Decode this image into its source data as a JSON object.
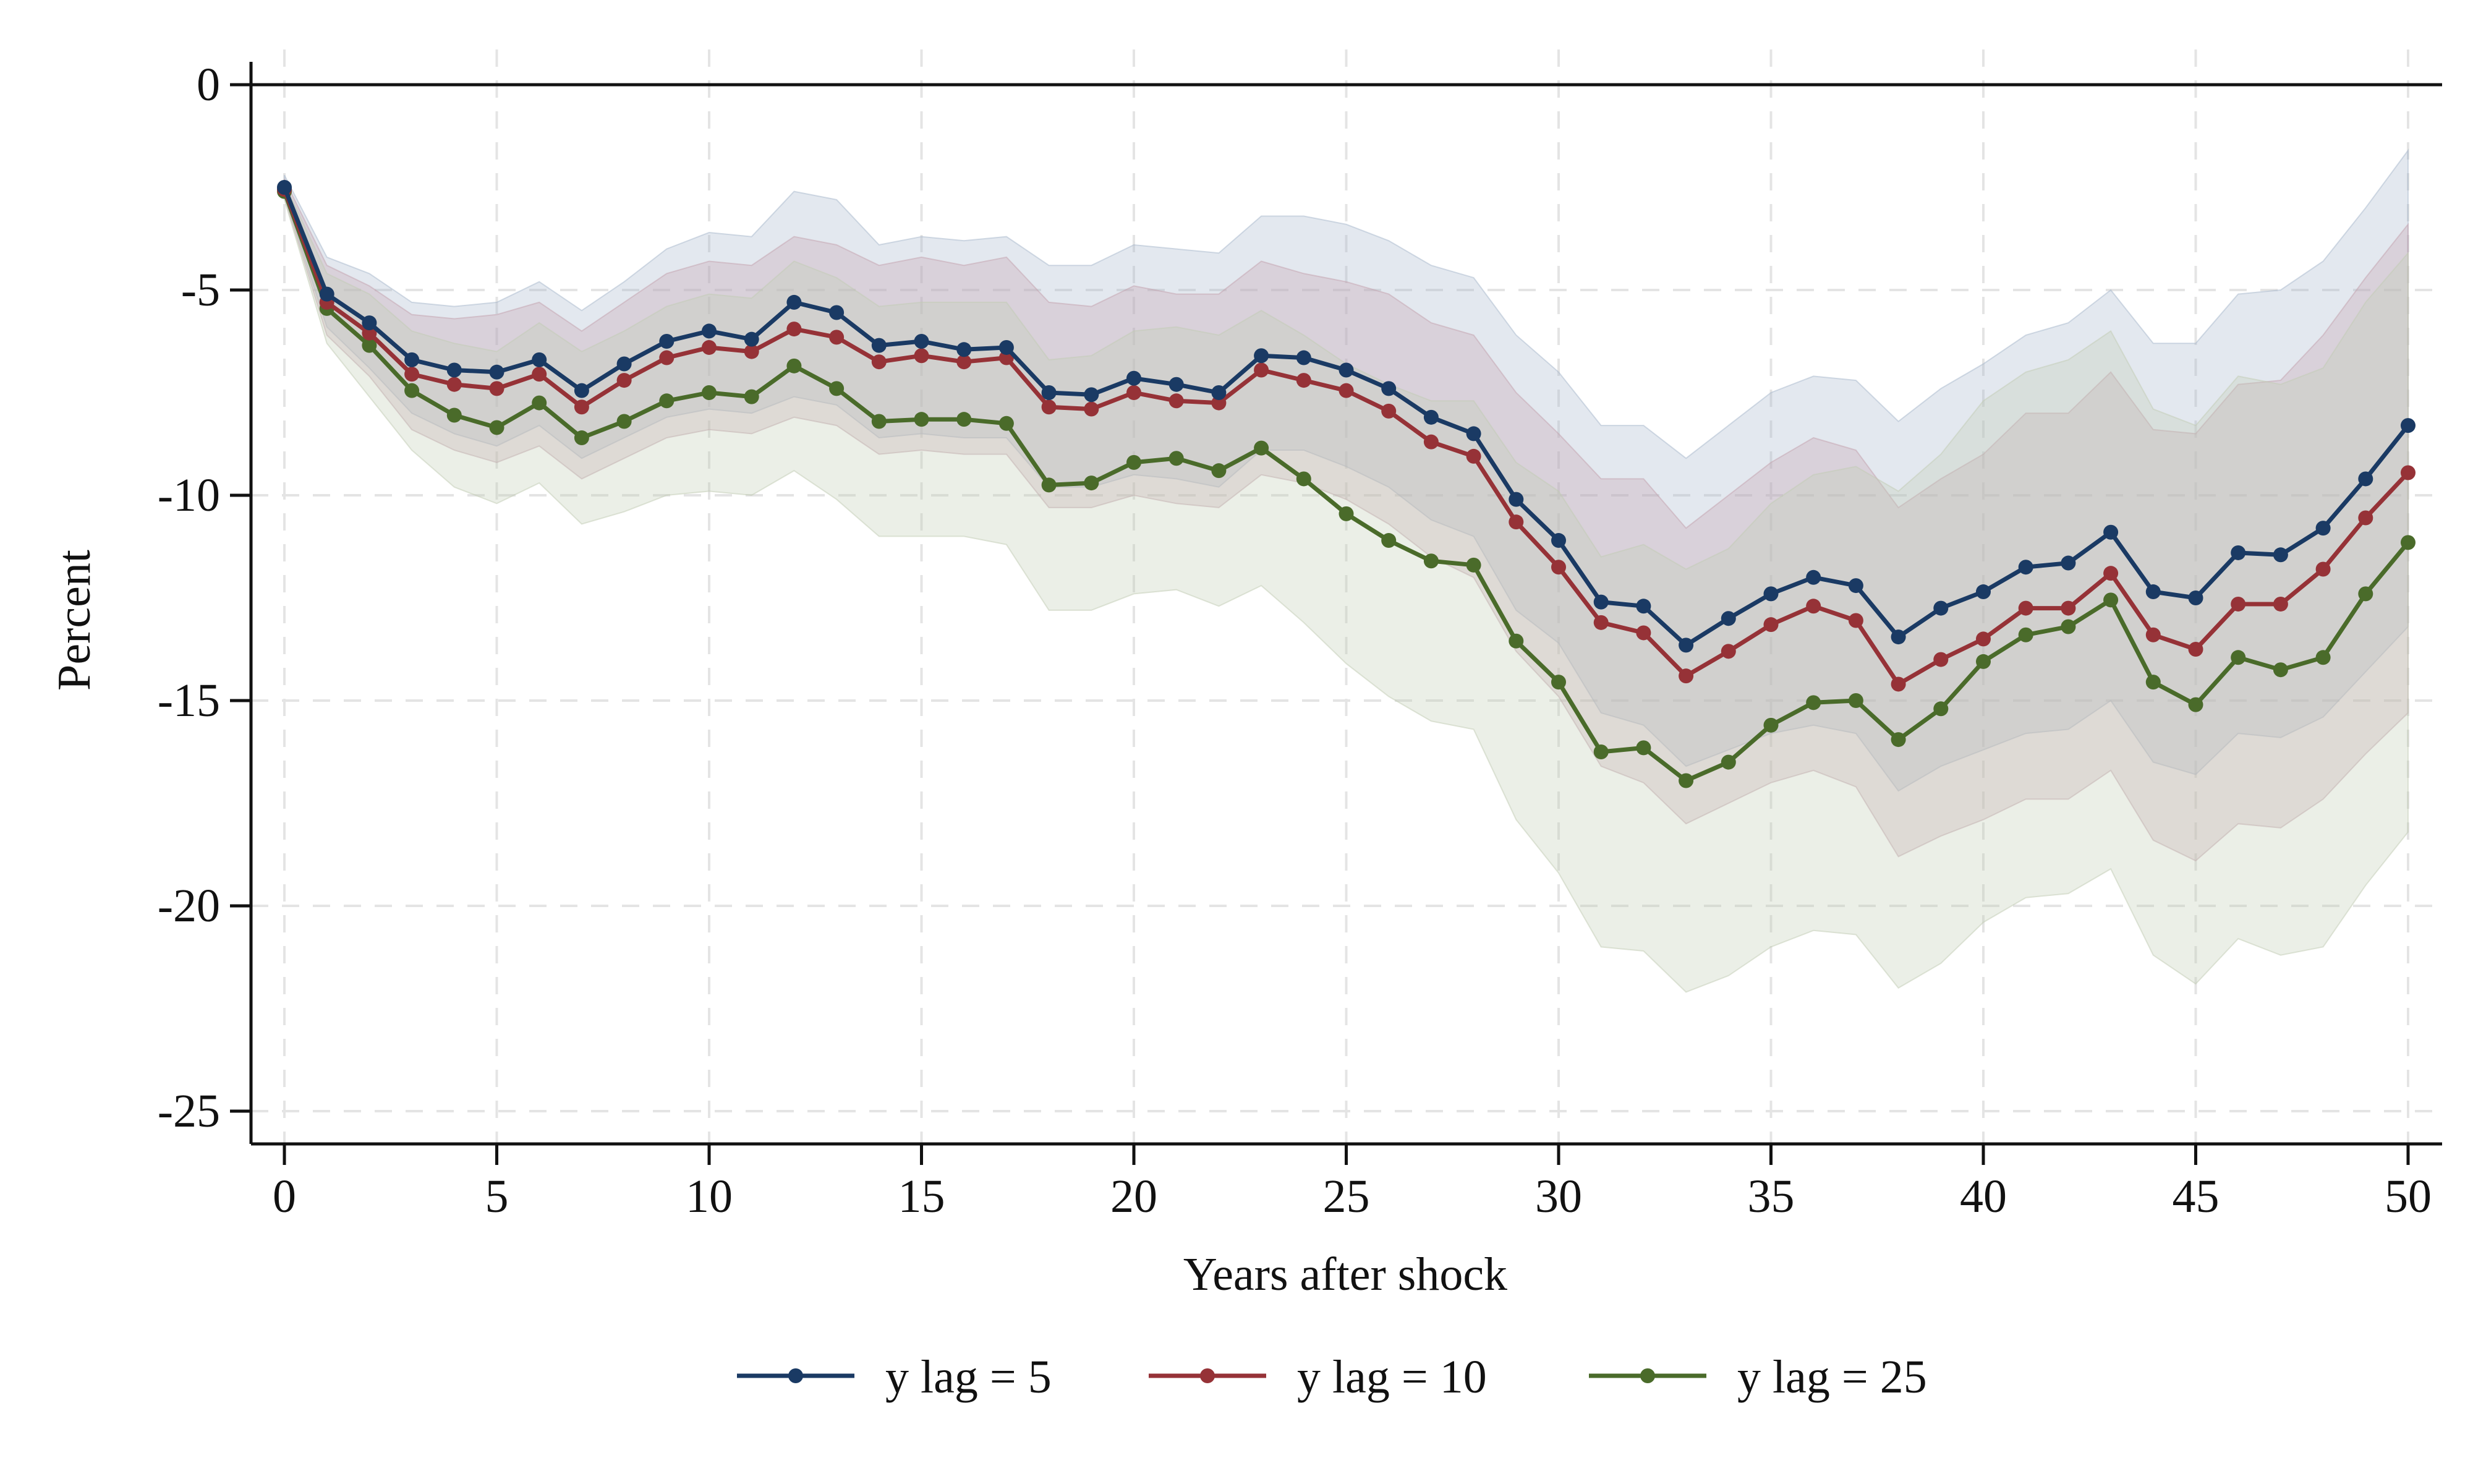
{
  "chart_data": {
    "type": "line",
    "title": "",
    "xlabel": "Years after shock",
    "ylabel": "Percent",
    "xlim": [
      0,
      50
    ],
    "ylim": [
      -25,
      0
    ],
    "x_ticks": [
      0,
      5,
      10,
      15,
      20,
      25,
      30,
      35,
      40,
      45,
      50
    ],
    "y_ticks": [
      0,
      -5,
      -10,
      -15,
      -20,
      -25
    ],
    "x_tick_labels": [
      "0",
      "5",
      "10",
      "15",
      "20",
      "25",
      "30",
      "35",
      "40",
      "45",
      "50"
    ],
    "y_tick_labels": [
      "0",
      "-5",
      "-10",
      "-15",
      "-20",
      "-25"
    ],
    "grid": true,
    "reference_line": 0,
    "legend_position": "bottom",
    "x": [
      0,
      1,
      2,
      3,
      4,
      5,
      6,
      7,
      8,
      9,
      10,
      11,
      12,
      13,
      14,
      15,
      16,
      17,
      18,
      19,
      20,
      21,
      22,
      23,
      24,
      25,
      26,
      27,
      28,
      29,
      30,
      31,
      32,
      33,
      34,
      35,
      36,
      37,
      38,
      39,
      40,
      41,
      42,
      43,
      44,
      45,
      46,
      47,
      48,
      49,
      50
    ],
    "series": [
      {
        "name": "y lag = 5",
        "color": "#1a3a64",
        "band_color": "#a8b8cc",
        "values": [
          -2.5,
          -5.1,
          -5.8,
          -6.7,
          -6.95,
          -7.0,
          -6.7,
          -7.45,
          -6.8,
          -6.25,
          -6.0,
          -6.2,
          -5.3,
          -5.55,
          -6.35,
          -6.25,
          -6.45,
          -6.4,
          -7.5,
          -7.55,
          -7.15,
          -7.3,
          -7.5,
          -6.6,
          -6.65,
          -6.95,
          -7.4,
          -8.1,
          -8.5,
          -10.1,
          -11.1,
          -12.6,
          -12.7,
          -13.65,
          -13.0,
          -12.4,
          -12.0,
          -12.2,
          -13.45,
          -12.75,
          -12.35,
          -11.75,
          -11.65,
          -10.9,
          -12.35,
          -12.5,
          -11.4,
          -11.45,
          -10.8,
          -9.6,
          -8.3
        ],
        "lower": [
          -2.7,
          -5.9,
          -6.9,
          -8.0,
          -8.5,
          -8.8,
          -8.3,
          -9.1,
          -8.6,
          -8.1,
          -7.9,
          -8.0,
          -7.6,
          -7.8,
          -8.6,
          -8.5,
          -8.6,
          -8.6,
          -9.8,
          -9.8,
          -9.5,
          -9.6,
          -9.8,
          -8.9,
          -8.9,
          -9.3,
          -9.8,
          -10.6,
          -11.0,
          -12.8,
          -13.6,
          -15.3,
          -15.6,
          -16.6,
          -16.2,
          -15.8,
          -15.6,
          -15.8,
          -17.2,
          -16.6,
          -16.2,
          -15.8,
          -15.7,
          -15.0,
          -16.5,
          -16.8,
          -15.8,
          -15.9,
          -15.4,
          -14.3,
          -13.2
        ],
        "upper": [
          -2.2,
          -4.2,
          -4.6,
          -5.3,
          -5.4,
          -5.3,
          -4.8,
          -5.5,
          -4.8,
          -4.0,
          -3.6,
          -3.7,
          -2.6,
          -2.8,
          -3.9,
          -3.7,
          -3.8,
          -3.7,
          -4.4,
          -4.4,
          -3.9,
          -4.0,
          -4.1,
          -3.2,
          -3.2,
          -3.4,
          -3.8,
          -4.4,
          -4.7,
          -6.1,
          -7.0,
          -8.3,
          -8.3,
          -9.1,
          -8.3,
          -7.5,
          -7.1,
          -7.2,
          -8.2,
          -7.4,
          -6.8,
          -6.1,
          -5.8,
          -5.0,
          -6.3,
          -6.3,
          -5.1,
          -5.0,
          -4.3,
          -3.0,
          -1.6
        ]
      },
      {
        "name": "y lag = 10",
        "color": "#963237",
        "band_color": "#c3a1ad",
        "values": [
          -2.55,
          -5.3,
          -6.05,
          -7.05,
          -7.3,
          -7.4,
          -7.05,
          -7.85,
          -7.2,
          -6.65,
          -6.4,
          -6.5,
          -5.95,
          -6.15,
          -6.75,
          -6.6,
          -6.75,
          -6.65,
          -7.85,
          -7.9,
          -7.5,
          -7.7,
          -7.75,
          -6.95,
          -7.2,
          -7.45,
          -7.95,
          -8.7,
          -9.05,
          -10.65,
          -11.75,
          -13.1,
          -13.35,
          -14.4,
          -13.8,
          -13.15,
          -12.7,
          -13.05,
          -14.6,
          -14.0,
          -13.5,
          -12.75,
          -12.75,
          -11.9,
          -13.4,
          -13.75,
          -12.65,
          -12.65,
          -11.8,
          -10.55,
          -9.45
        ],
        "lower": [
          -2.75,
          -6.1,
          -7.1,
          -8.4,
          -8.9,
          -9.2,
          -8.8,
          -9.6,
          -9.1,
          -8.6,
          -8.4,
          -8.5,
          -8.1,
          -8.3,
          -9.0,
          -8.9,
          -9.0,
          -9.0,
          -10.3,
          -10.3,
          -10.0,
          -10.2,
          -10.3,
          -9.5,
          -9.7,
          -10.1,
          -10.7,
          -11.5,
          -12.0,
          -13.8,
          -14.9,
          -16.6,
          -17.0,
          -18.0,
          -17.5,
          -17.0,
          -16.7,
          -17.1,
          -18.8,
          -18.3,
          -17.9,
          -17.4,
          -17.4,
          -16.7,
          -18.4,
          -18.9,
          -18.0,
          -18.1,
          -17.4,
          -16.3,
          -15.3
        ],
        "upper": [
          -2.3,
          -4.4,
          -4.9,
          -5.6,
          -5.7,
          -5.6,
          -5.3,
          -6.0,
          -5.3,
          -4.6,
          -4.3,
          -4.4,
          -3.7,
          -3.9,
          -4.4,
          -4.2,
          -4.4,
          -4.2,
          -5.3,
          -5.4,
          -4.9,
          -5.1,
          -5.1,
          -4.3,
          -4.6,
          -4.8,
          -5.1,
          -5.8,
          -6.1,
          -7.5,
          -8.5,
          -9.6,
          -9.6,
          -10.8,
          -10.0,
          -9.2,
          -8.6,
          -8.9,
          -10.3,
          -9.6,
          -9.0,
          -8.0,
          -8.0,
          -7.0,
          -8.4,
          -8.5,
          -7.3,
          -7.2,
          -6.1,
          -4.7,
          -3.4
        ]
      },
      {
        "name": "y lag = 25",
        "color": "#4a6b2a",
        "band_color": "#c2ccb4",
        "values": [
          -2.6,
          -5.45,
          -6.35,
          -7.45,
          -8.05,
          -8.35,
          -7.75,
          -8.6,
          -8.2,
          -7.7,
          -7.5,
          -7.6,
          -6.85,
          -7.4,
          -8.2,
          -8.15,
          -8.15,
          -8.25,
          -9.75,
          -9.7,
          -9.2,
          -9.1,
          -9.4,
          -8.85,
          -9.6,
          -10.45,
          -11.1,
          -11.6,
          -11.7,
          -13.55,
          -14.55,
          -16.25,
          -16.15,
          -16.95,
          -16.5,
          -15.6,
          -15.05,
          -15.0,
          -15.95,
          -15.2,
          -14.05,
          -13.4,
          -13.2,
          -12.55,
          -14.55,
          -15.1,
          -13.95,
          -14.25,
          -13.95,
          -12.4,
          -11.15
        ],
        "lower": [
          -2.8,
          -6.3,
          -7.6,
          -8.9,
          -9.8,
          -10.2,
          -9.7,
          -10.7,
          -10.4,
          -10.0,
          -9.9,
          -10.0,
          -9.4,
          -10.1,
          -11.0,
          -11.0,
          -11.0,
          -11.2,
          -12.8,
          -12.8,
          -12.4,
          -12.3,
          -12.7,
          -12.2,
          -13.1,
          -14.1,
          -14.9,
          -15.5,
          -15.7,
          -17.9,
          -19.2,
          -21.0,
          -21.1,
          -22.1,
          -21.7,
          -21.0,
          -20.6,
          -20.7,
          -22.0,
          -21.4,
          -20.4,
          -19.8,
          -19.7,
          -19.1,
          -21.2,
          -21.9,
          -20.8,
          -21.2,
          -21.0,
          -19.5,
          -18.2
        ],
        "upper": [
          -2.4,
          -4.6,
          -5.1,
          -6.0,
          -6.3,
          -6.5,
          -5.8,
          -6.5,
          -6.0,
          -5.4,
          -5.1,
          -5.2,
          -4.3,
          -4.7,
          -5.4,
          -5.3,
          -5.3,
          -5.3,
          -6.7,
          -6.6,
          -6.0,
          -5.9,
          -6.1,
          -5.5,
          -6.1,
          -6.8,
          -7.3,
          -7.7,
          -7.7,
          -9.2,
          -9.9,
          -11.5,
          -11.2,
          -11.8,
          -11.3,
          -10.2,
          -9.5,
          -9.3,
          -9.9,
          -9.0,
          -7.7,
          -7.0,
          -6.7,
          -6.0,
          -7.9,
          -8.3,
          -7.1,
          -7.3,
          -6.9,
          -5.3,
          -4.1
        ]
      }
    ]
  }
}
